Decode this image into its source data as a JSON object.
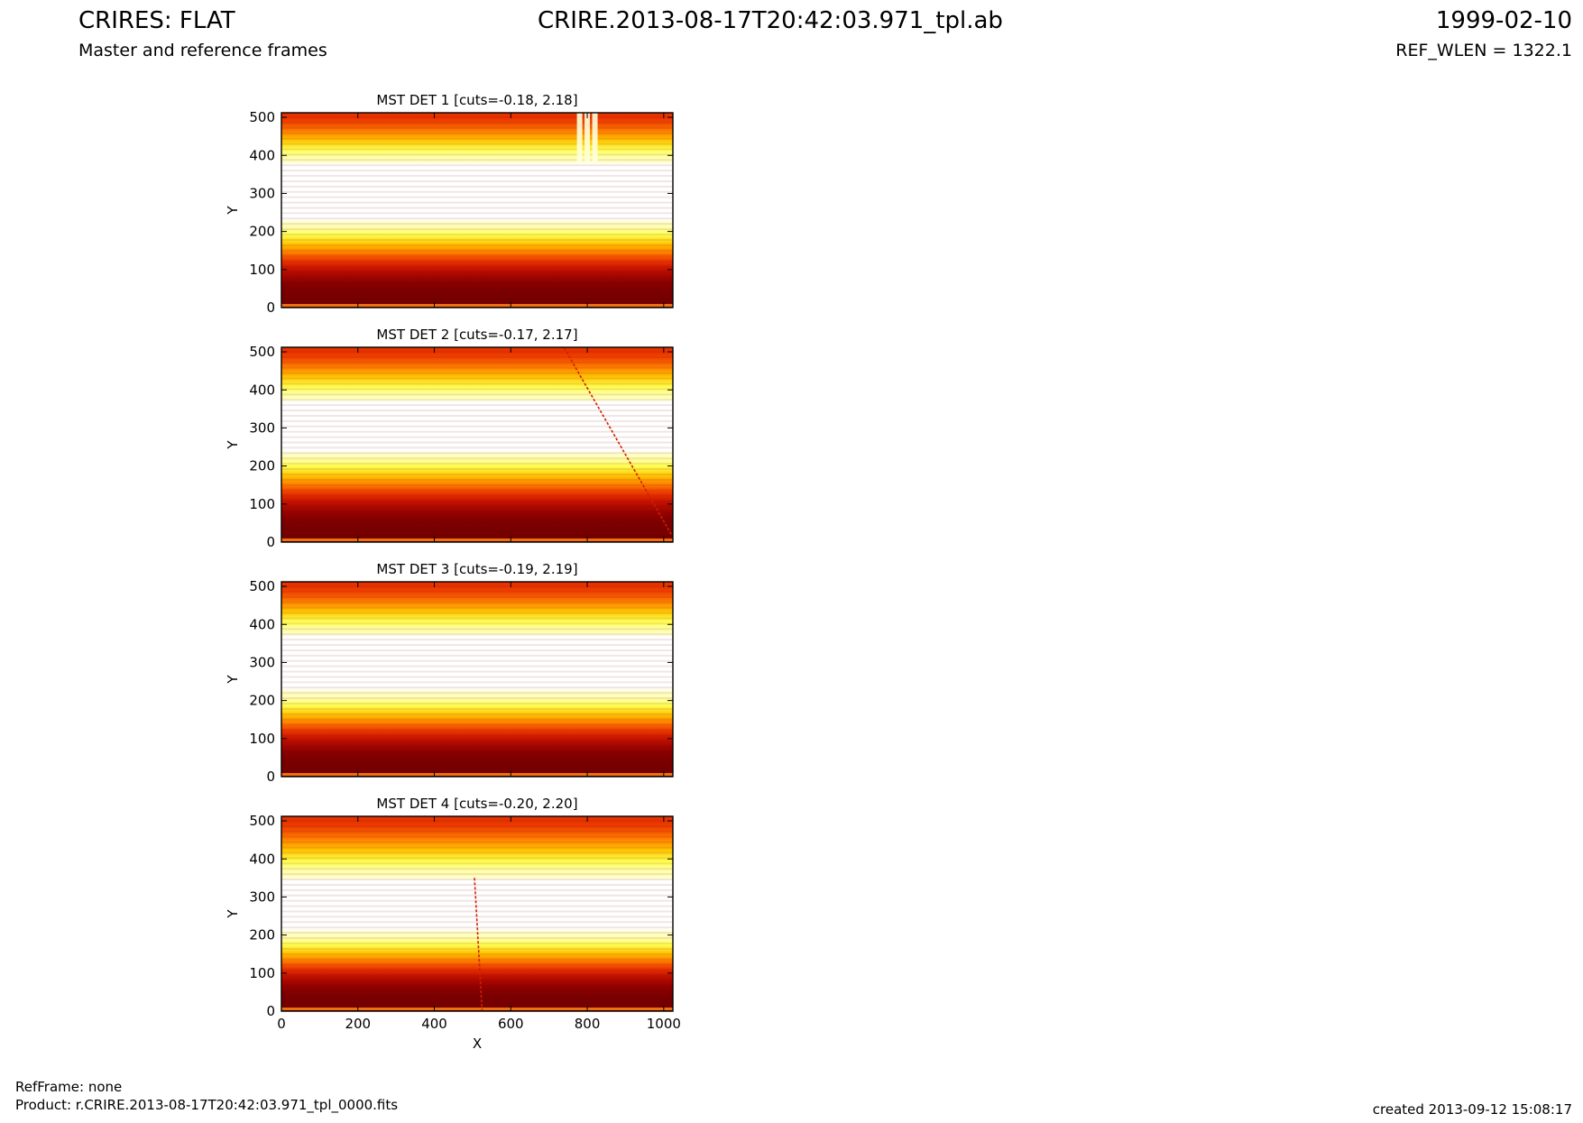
{
  "header": {
    "title": "CRIRES: FLAT",
    "subtitle": "Master and reference frames",
    "filename": "CRIRE.2013-08-17T20:42:03.971_tpl.ab",
    "date": "1999-02-10",
    "ref_wlen": "REF_WLEN = 1322.1"
  },
  "footer": {
    "refframe": "RefFrame: none",
    "product": "Product: r.CRIRE.2013-08-17T20:42:03.971_tpl_0000.fits",
    "created": "created 2013-09-12 15:08:17"
  },
  "colors": {
    "colormap": [
      "#5a0000",
      "#8a0000",
      "#c41000",
      "#ee3a00",
      "#ff8200",
      "#ffc400",
      "#ffff50",
      "#ffffff"
    ]
  },
  "chart_data": [
    {
      "type": "heatmap",
      "title": "MST DET 1 [cuts=-0.18, 2.18]",
      "xlabel": "",
      "ylabel": "Y",
      "xlim": [
        0,
        1024
      ],
      "ylim": [
        0,
        512
      ],
      "xticks": [],
      "yticks": [
        0,
        100,
        200,
        300,
        400,
        500
      ],
      "cuts": [
        -0.18,
        2.18
      ],
      "bright_band": [
        230,
        380
      ],
      "features": [
        {
          "kind": "bright_column",
          "x": 780
        },
        {
          "kind": "bright_column",
          "x": 800
        },
        {
          "kind": "bright_column",
          "x": 820
        }
      ]
    },
    {
      "type": "heatmap",
      "title": "MST DET 2 [cuts=-0.17, 2.17]",
      "xlabel": "",
      "ylabel": "Y",
      "xlim": [
        0,
        1024
      ],
      "ylim": [
        0,
        512
      ],
      "xticks": [],
      "yticks": [
        0,
        100,
        200,
        300,
        400,
        500
      ],
      "cuts": [
        -0.17,
        2.17
      ],
      "bright_band": [
        240,
        370
      ],
      "features": [
        {
          "kind": "diagonal_streak",
          "x0": 740,
          "y0": 510,
          "x1": 1020,
          "y1": 20
        }
      ]
    },
    {
      "type": "heatmap",
      "title": "MST DET 3 [cuts=-0.19, 2.19]",
      "xlabel": "",
      "ylabel": "Y",
      "xlim": [
        0,
        1024
      ],
      "ylim": [
        0,
        512
      ],
      "xticks": [],
      "yticks": [
        0,
        100,
        200,
        300,
        400,
        500
      ],
      "cuts": [
        -0.19,
        2.19
      ],
      "bright_band": [
        225,
        370
      ],
      "features": []
    },
    {
      "type": "heatmap",
      "title": "MST DET 4 [cuts=-0.20, 2.20]",
      "xlabel": "X",
      "ylabel": "Y",
      "xlim": [
        0,
        1024
      ],
      "ylim": [
        0,
        512
      ],
      "xticks": [
        0,
        200,
        400,
        600,
        800,
        1000
      ],
      "yticks": [
        0,
        100,
        200,
        300,
        400,
        500
      ],
      "cuts": [
        -0.2,
        2.2
      ],
      "bright_band": [
        210,
        350
      ],
      "features": [
        {
          "kind": "diagonal_streak",
          "x0": 505,
          "y0": 350,
          "x1": 525,
          "y1": 0
        }
      ]
    }
  ]
}
